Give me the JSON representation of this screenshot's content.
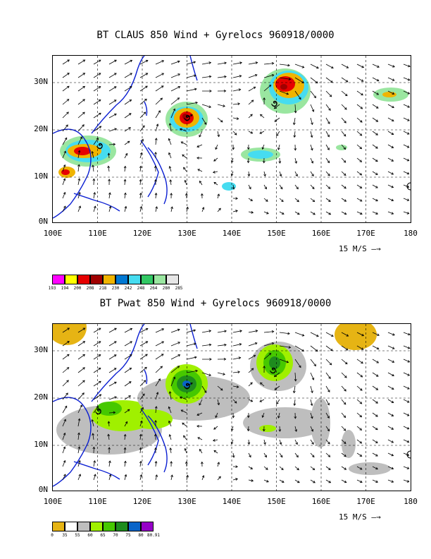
{
  "top": {
    "title": "BT CLAUS 850 Wind + Gyrelocs 960918/0000",
    "lat_labels": [
      "30N",
      "20N",
      "10N",
      "0N"
    ],
    "lon_labels": [
      "100E",
      "110E",
      "120E",
      "130E",
      "140E",
      "150E",
      "160E",
      "170E",
      "180"
    ],
    "scale": "15 M/S",
    "legend": {
      "colors": [
        "#ff00ff",
        "#ffff00",
        "#e60000",
        "#a00000",
        "#f0b400",
        "#0078d2",
        "#46dcf0",
        "#32c864",
        "#9ae6a0",
        "#e6e6e6"
      ],
      "labels": [
        "193",
        "194",
        "200",
        "208",
        "218",
        "230",
        "242",
        "248",
        "264",
        "280",
        "285"
      ]
    }
  },
  "bottom": {
    "title": "BT Pwat 850 Wind + Gyrelocs 960918/0000",
    "lat_labels": [
      "30N",
      "20N",
      "10N",
      "0N"
    ],
    "lon_labels": [
      "100E",
      "110E",
      "120E",
      "130E",
      "140E",
      "150E",
      "160E",
      "170E",
      "180"
    ],
    "scale": "15 M/S",
    "legend": {
      "colors": [
        "#e6b414",
        "#ffffff",
        "#bebebe",
        "#a0f000",
        "#46c800",
        "#1e8c1e",
        "#0a64c8",
        "#9600c8"
      ],
      "labels": [
        "0",
        "35",
        "55",
        "60",
        "65",
        "70",
        "75",
        "80",
        "80.91"
      ]
    }
  }
}
